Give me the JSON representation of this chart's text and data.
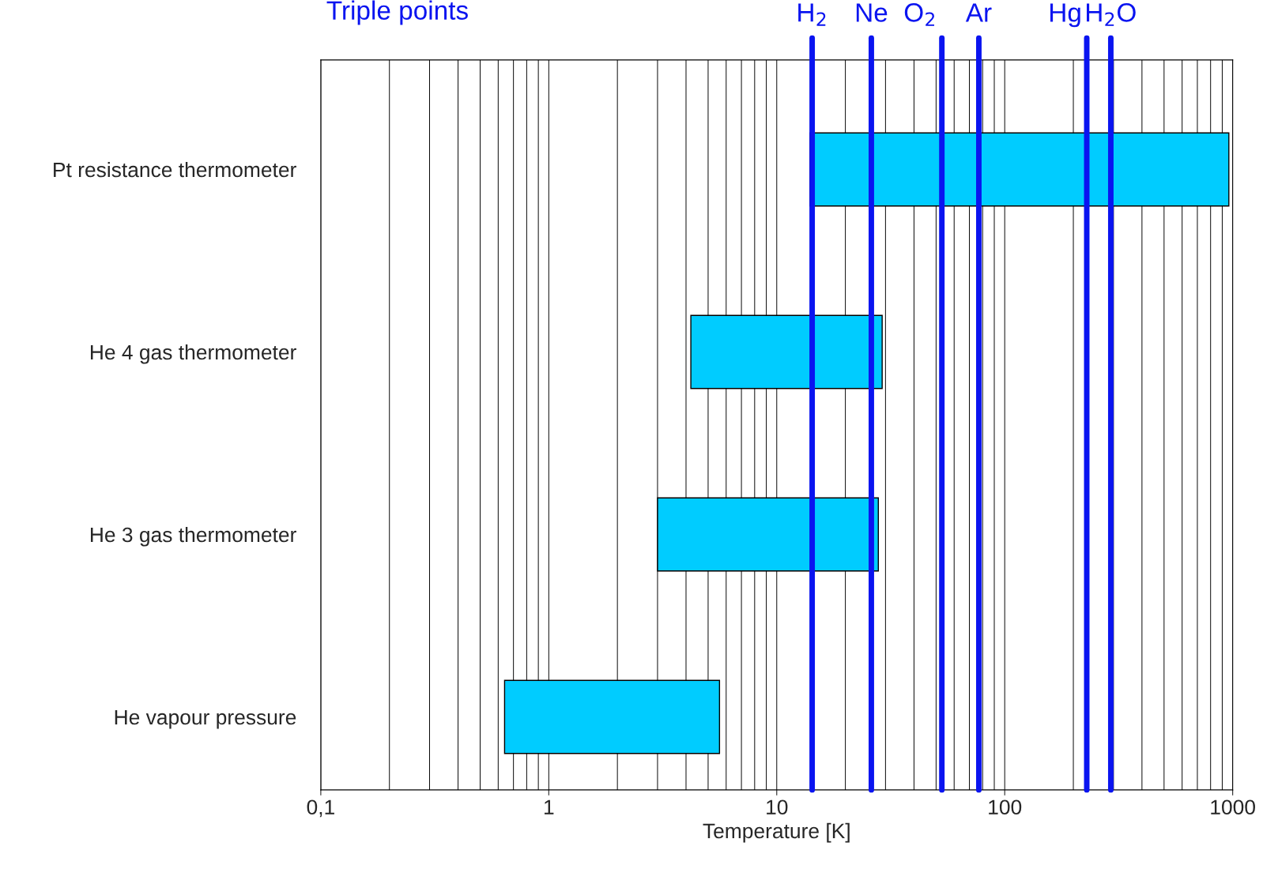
{
  "chart_data": {
    "type": "bar",
    "orientation": "horizontal",
    "xlabel": "Temperature [K]",
    "categories": [
      "Pt resistance thermometer",
      "He 4 gas thermometer",
      "He 3 gas thermometer",
      "He vapour pressure"
    ],
    "base": [
      14,
      4.2,
      3.0,
      0.64
    ],
    "values": [
      948,
      24.8,
      24.9,
      4.97
    ],
    "color": "#00ccff",
    "log": "x",
    "xlim": [
      0.1,
      1000
    ],
    "xticks": [
      {
        "value": 0.1,
        "label": "0,1"
      },
      1,
      10,
      100,
      1000
    ],
    "grid": "x",
    "ref_lines": [
      {
        "axis": "x",
        "value": 14.3,
        "label": "H$_{2}$",
        "color": "#0a14f0"
      },
      {
        "axis": "x",
        "value": 26,
        "label": "Ne",
        "color": "#0a14f0"
      },
      {
        "axis": "x",
        "value": 53,
        "label": "O$_{2}$",
        "color": "#0a14f0"
      },
      {
        "axis": "x",
        "value": 77,
        "label": "Ar",
        "color": "#0a14f0"
      },
      {
        "axis": "x",
        "value": 229,
        "label": "Hg",
        "color": "#0a14f0"
      },
      {
        "axis": "x",
        "value": 292,
        "label": "H$_{2}$O",
        "color": "#0a14f0"
      }
    ],
    "annotations": [
      "Triple points"
    ]
  }
}
